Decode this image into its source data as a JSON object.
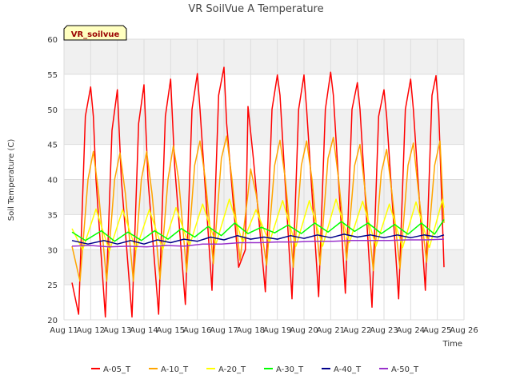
{
  "chart_data": {
    "type": "line",
    "title": "VR SoilVue A Temperature",
    "xlabel": "Time",
    "ylabel": "Soil Temperature (C)",
    "station_label": "VR_soilvue",
    "ylim": [
      20,
      60
    ],
    "yticks": [
      20,
      25,
      30,
      35,
      40,
      45,
      50,
      55,
      60
    ],
    "xlim": [
      11,
      26
    ],
    "xtick_values": [
      11,
      12,
      13,
      14,
      15,
      16,
      17,
      18,
      19,
      20,
      21,
      22,
      23,
      24,
      25,
      26
    ],
    "xtick_labels": [
      "Aug 11",
      "Aug 12",
      "Aug 13",
      "Aug 14",
      "Aug 15",
      "Aug 16",
      "Aug 17",
      "Aug 18",
      "Aug 19",
      "Aug 20",
      "Aug 21",
      "Aug 22",
      "Aug 23",
      "Aug 24",
      "Aug 25",
      "Aug 26"
    ],
    "grid": true,
    "legend_position": "bottom",
    "series": [
      {
        "name": "A-05_T",
        "color": "#ff0000",
        "x": [
          11.3,
          11.55,
          11.8,
          12.0,
          12.1,
          12.2,
          12.55,
          12.8,
          13.0,
          13.15,
          13.55,
          13.8,
          14.0,
          14.15,
          14.55,
          14.8,
          15.0,
          15.15,
          15.55,
          15.8,
          16.0,
          16.1,
          16.55,
          16.8,
          17.0,
          17.1,
          17.55,
          17.8,
          17.9,
          18.1,
          18.55,
          18.8,
          19.0,
          19.1,
          19.55,
          19.8,
          20.0,
          20.1,
          20.55,
          20.8,
          21.0,
          21.1,
          21.55,
          21.8,
          22.0,
          22.1,
          22.55,
          22.8,
          23.0,
          23.1,
          23.55,
          23.8,
          24.0,
          24.1,
          24.55,
          24.8,
          24.95,
          25.05,
          25.25
        ],
        "values": [
          25.3,
          20.8,
          49,
          53.2,
          49,
          40,
          20.4,
          47,
          52.8,
          40,
          20.4,
          48,
          53.5,
          40,
          20.8,
          49,
          54.3,
          42,
          22.2,
          50,
          55.1,
          50,
          24.2,
          52,
          56,
          48,
          27.5,
          30,
          50.4,
          43,
          24,
          50,
          54.9,
          52,
          23,
          50,
          54.9,
          50,
          23.3,
          50,
          55.3,
          52,
          23.8,
          50,
          53.8,
          50,
          21.8,
          49,
          52.8,
          49,
          23,
          50,
          54.3,
          50,
          24.2,
          52,
          54.8,
          50,
          27.5
        ]
      },
      {
        "name": "A-10_T",
        "color": "#ffa500",
        "x": [
          11.3,
          11.6,
          11.9,
          12.1,
          12.3,
          12.6,
          12.9,
          13.1,
          13.3,
          13.6,
          13.9,
          14.1,
          14.3,
          14.6,
          14.9,
          15.1,
          15.3,
          15.6,
          15.9,
          16.1,
          16.3,
          16.6,
          16.9,
          17.1,
          17.3,
          17.6,
          17.9,
          18.0,
          18.2,
          18.6,
          18.9,
          19.1,
          19.3,
          19.6,
          19.9,
          20.1,
          20.3,
          20.6,
          20.9,
          21.1,
          21.3,
          21.6,
          21.9,
          22.1,
          22.3,
          22.6,
          22.9,
          23.1,
          23.3,
          23.6,
          23.9,
          24.1,
          24.3,
          24.6,
          24.9,
          25.1,
          25.25
        ],
        "values": [
          30.5,
          25.5,
          40,
          44,
          38,
          25.5,
          40,
          43.8,
          38,
          25.5,
          40,
          44,
          38,
          25.8,
          40,
          44.8,
          40,
          26.8,
          42,
          45.5,
          40,
          28,
          43,
          46.2,
          40,
          28.5,
          38,
          41.5,
          38,
          27.8,
          42,
          45.6,
          40,
          27.5,
          42,
          45.5,
          40,
          27.8,
          43,
          46,
          40,
          28.5,
          42,
          45,
          38,
          27,
          41,
          44.3,
          38,
          27.3,
          42,
          45.2,
          38,
          28.2,
          42,
          45.5,
          33.8
        ]
      },
      {
        "name": "A-20_T",
        "color": "#ffff00",
        "x": [
          11.3,
          11.7,
          12.2,
          12.7,
          13.2,
          13.7,
          14.2,
          14.7,
          15.2,
          15.7,
          16.2,
          16.7,
          17.2,
          17.7,
          18.2,
          18.7,
          19.2,
          19.7,
          20.2,
          20.7,
          21.2,
          21.7,
          22.2,
          22.7,
          23.2,
          23.7,
          24.2,
          24.7,
          25.2,
          25.25
        ],
        "values": [
          33,
          30,
          35.8,
          29.8,
          35.7,
          30,
          35.7,
          30,
          36,
          30.5,
          36.5,
          30.8,
          37.2,
          31,
          35.7,
          31,
          37,
          30.5,
          37,
          30.5,
          37.2,
          31,
          36.9,
          30.5,
          36.5,
          30.3,
          36.8,
          30.3,
          37.2,
          36
        ]
      },
      {
        "name": "A-30_T",
        "color": "#00ff00",
        "x": [
          11.3,
          11.8,
          12.4,
          12.9,
          13.4,
          13.9,
          14.4,
          14.9,
          15.4,
          15.9,
          16.4,
          16.9,
          17.4,
          17.9,
          18.4,
          18.9,
          19.4,
          19.9,
          20.4,
          20.9,
          21.4,
          21.9,
          22.4,
          22.9,
          23.4,
          23.9,
          24.4,
          24.9,
          25.25
        ],
        "values": [
          32.5,
          31.3,
          32.7,
          31.2,
          32.5,
          31.3,
          32.7,
          31.5,
          33,
          31.8,
          33.3,
          32,
          33.8,
          32.3,
          33.2,
          32.4,
          33.5,
          32.3,
          33.8,
          32.5,
          34,
          32.6,
          33.8,
          32.3,
          33.6,
          32.2,
          33.8,
          32.2,
          34.3
        ]
      },
      {
        "name": "A-40_T",
        "color": "#00008b",
        "x": [
          11.3,
          11.9,
          12.5,
          13.0,
          13.5,
          14.0,
          14.5,
          15.0,
          15.5,
          16.0,
          16.5,
          17.0,
          17.5,
          18.0,
          18.5,
          19.0,
          19.5,
          20.0,
          20.5,
          21.0,
          21.5,
          22.0,
          22.5,
          23.0,
          23.5,
          24.0,
          24.5,
          25.0,
          25.25
        ],
        "values": [
          31.3,
          30.8,
          31.3,
          30.8,
          31.3,
          30.8,
          31.4,
          31,
          31.5,
          31.2,
          31.8,
          31.4,
          32,
          31.5,
          31.8,
          31.5,
          32,
          31.6,
          32.1,
          31.7,
          32.2,
          31.8,
          32.1,
          31.7,
          32.1,
          31.7,
          32.1,
          31.8,
          32.1
        ]
      },
      {
        "name": "A-50_T",
        "color": "#9932cc",
        "x": [
          11.3,
          12.0,
          12.7,
          13.4,
          14.1,
          14.8,
          15.5,
          16.2,
          16.9,
          17.6,
          18.3,
          19.0,
          19.7,
          20.4,
          21.1,
          21.8,
          22.5,
          23.2,
          23.9,
          24.6,
          25.25
        ],
        "values": [
          30.5,
          30.6,
          30.4,
          30.5,
          30.4,
          30.6,
          30.5,
          30.8,
          30.8,
          31,
          31,
          31.1,
          31.1,
          31.2,
          31.2,
          31.3,
          31.3,
          31.3,
          31.4,
          31.4,
          31.5
        ]
      }
    ]
  }
}
